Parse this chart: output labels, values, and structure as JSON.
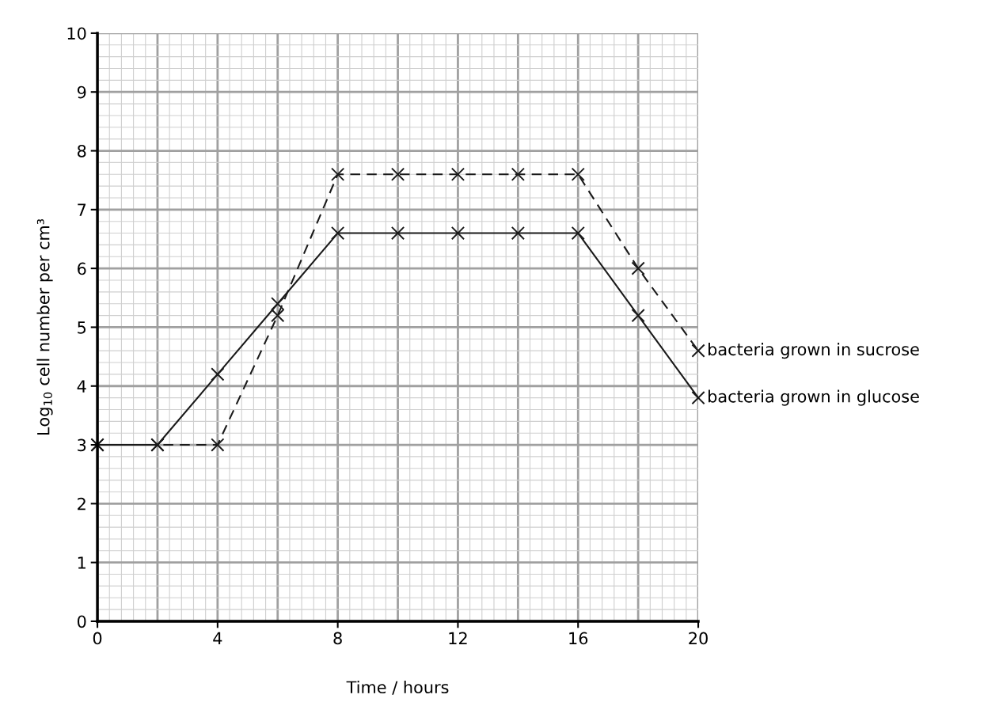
{
  "chart_data": {
    "type": "line",
    "xlabel": "Time / hours",
    "ylabel": "Log$_{10}$ cell number per cm³",
    "xlim": [
      0,
      20
    ],
    "ylim": [
      0,
      10
    ],
    "xticks": [
      0,
      4,
      8,
      12,
      16,
      20
    ],
    "yticks": [
      0,
      1,
      2,
      3,
      4,
      5,
      6,
      7,
      8,
      9,
      10
    ],
    "grid": true,
    "legend": false,
    "marker": "cross",
    "x": [
      0,
      2,
      4,
      6,
      8,
      10,
      12,
      14,
      16,
      18,
      20
    ],
    "series": [
      {
        "name": "bacteria grown in sucrose",
        "color": "#1a1a1a",
        "line_style": "dashed",
        "values": [
          3,
          3,
          3,
          5.2,
          7.6,
          7.6,
          7.6,
          7.6,
          7.6,
          6.0,
          4.6
        ]
      },
      {
        "name": "bacteria grown in glucose",
        "color": "#1a1a1a",
        "line_style": "solid",
        "values": [
          3,
          3,
          4.2,
          5.4,
          6.6,
          6.6,
          6.6,
          6.6,
          6.6,
          5.2,
          3.8
        ]
      }
    ]
  }
}
